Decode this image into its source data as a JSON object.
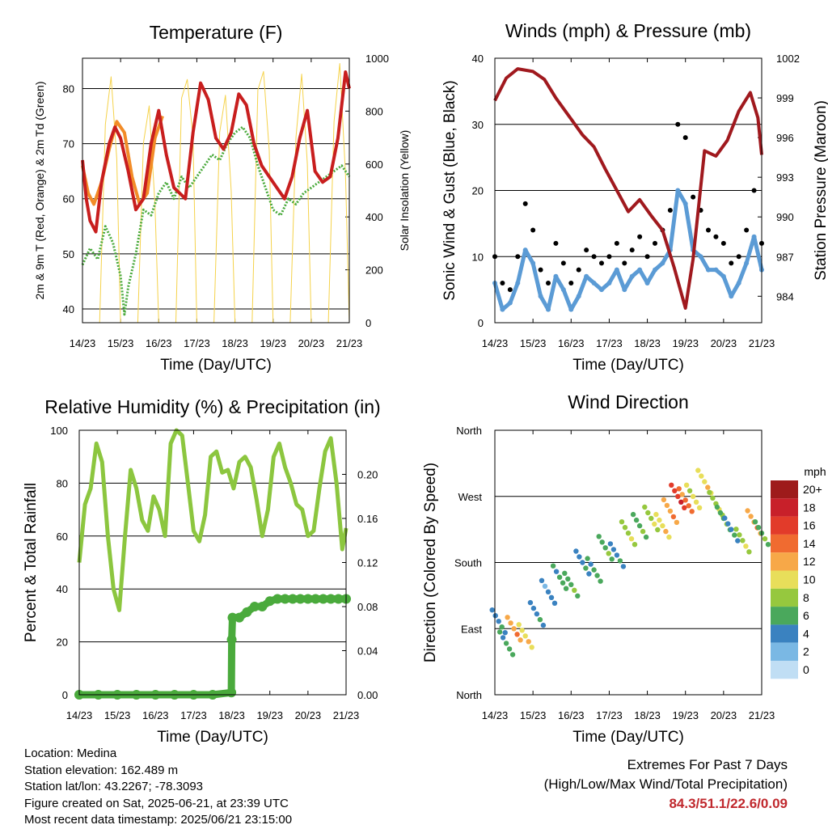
{
  "chart_data": [
    {
      "type": "line",
      "title": "Temperature (F)",
      "xlabel": "Time (Day/UTC)",
      "ylabel": "2m & 9m T (Red, Orange) & 2m Td (Green)",
      "ylabel_right": "Solar Insolation (Yellow)",
      "x_ticks": [
        "14/23",
        "15/23",
        "16/23",
        "17/23",
        "18/23",
        "19/23",
        "20/23",
        "21/23"
      ],
      "ylim": [
        37.5,
        85.5
      ],
      "y_ticks": [
        40,
        50,
        60,
        70,
        80
      ],
      "ylim_right": [
        0,
        1000
      ],
      "y_ticks_right": [
        0,
        200,
        400,
        600,
        800,
        1000
      ],
      "grid": "horizontal",
      "series": [
        {
          "role": "2m T",
          "color": "#c81e1e",
          "x": [
            0,
            0.1,
            0.2,
            0.35,
            0.5,
            0.7,
            0.85,
            1.0,
            1.2,
            1.4,
            1.6,
            1.8,
            2.0,
            2.2,
            2.4,
            2.7,
            2.9,
            3.1,
            3.3,
            3.5,
            3.7,
            3.9,
            4.1,
            4.3,
            4.5,
            4.7,
            4.9,
            5.1,
            5.3,
            5.5,
            5.7,
            5.9,
            6.1,
            6.3,
            6.5,
            6.7,
            6.9,
            7.0
          ],
          "values": [
            67,
            60,
            56,
            54,
            63,
            70,
            73,
            71,
            65,
            58,
            60,
            70,
            76,
            68,
            62,
            60,
            72,
            81,
            78,
            71,
            69,
            72,
            79,
            77,
            70,
            66,
            64,
            62,
            60,
            64,
            71,
            76,
            65,
            63,
            64,
            71,
            83,
            80
          ]
        },
        {
          "role": "9m T",
          "color": "#f28c28",
          "x": [
            0,
            0.15,
            0.3,
            0.5,
            0.7,
            0.9,
            1.1,
            1.3,
            1.5,
            1.7,
            1.9,
            2.1
          ],
          "values": [
            66,
            61,
            59,
            63,
            69,
            74,
            72,
            64,
            59,
            61,
            71,
            75
          ]
        },
        {
          "role": "2m Td",
          "color": "#4aaa3c",
          "x": [
            0,
            0.2,
            0.4,
            0.6,
            0.8,
            1.0,
            1.1,
            1.2,
            1.4,
            1.6,
            1.8,
            2.0,
            2.2,
            2.4,
            2.6,
            2.8,
            3.0,
            3.2,
            3.4,
            3.6,
            3.8,
            4.0,
            4.2,
            4.4,
            4.6,
            4.8,
            5.0,
            5.2,
            5.4,
            5.6,
            5.8,
            6.0,
            6.2,
            6.4,
            6.6,
            6.8,
            7.0
          ],
          "values": [
            48,
            51,
            49,
            55,
            52,
            46,
            39,
            44,
            50,
            58,
            57,
            61,
            63,
            60,
            64,
            62,
            64,
            66,
            68,
            67,
            70,
            72,
            73,
            71,
            66,
            62,
            58,
            57,
            60,
            59,
            61,
            62,
            63,
            64,
            65,
            66,
            64
          ]
        },
        {
          "role": "Solar Insolation",
          "color": "#f5d24a",
          "axis": "right",
          "x": [
            0,
            0.45,
            0.6,
            0.75,
            0.9,
            1.0,
            1.45,
            1.6,
            1.75,
            1.9,
            2.0,
            2.45,
            2.6,
            2.75,
            2.9,
            3.0,
            3.45,
            3.6,
            3.75,
            3.9,
            4.0,
            4.45,
            4.6,
            4.75,
            4.9,
            5.0,
            5.45,
            5.6,
            5.75,
            5.9,
            6.0,
            6.45,
            6.6,
            6.75,
            6.9,
            7.0
          ],
          "values": [
            0,
            0,
            750,
            930,
            620,
            0,
            0,
            680,
            820,
            450,
            0,
            0,
            850,
            920,
            700,
            0,
            0,
            720,
            860,
            500,
            0,
            0,
            880,
            950,
            650,
            0,
            0,
            700,
            940,
            600,
            0,
            0,
            760,
            980,
            560,
            0
          ]
        }
      ]
    },
    {
      "type": "scatter",
      "title": "Winds (mph) & Pressure (mb)",
      "xlabel": "Time (Day/UTC)",
      "ylabel": "Sonic Wind & Gust (Blue, Black)",
      "ylabel_right": "Station Pressure (Maroon)",
      "x_ticks": [
        "14/23",
        "15/23",
        "16/23",
        "17/23",
        "18/23",
        "19/23",
        "20/23",
        "21/23"
      ],
      "ylim": [
        0,
        40
      ],
      "y_ticks": [
        0,
        10,
        20,
        30,
        40
      ],
      "ylim_right": [
        982,
        1002
      ],
      "y_ticks_right": [
        984,
        987,
        990,
        993,
        996,
        999,
        1002
      ],
      "grid": "horizontal",
      "series": [
        {
          "role": "Gust",
          "color": "#000000",
          "x": [
            0,
            0.2,
            0.4,
            0.6,
            0.8,
            1.0,
            1.2,
            1.4,
            1.6,
            1.8,
            2.0,
            2.2,
            2.4,
            2.6,
            2.8,
            3.0,
            3.2,
            3.4,
            3.6,
            3.8,
            4.0,
            4.2,
            4.4,
            4.6,
            4.8,
            5.0,
            5.2,
            5.4,
            5.6,
            5.8,
            6.0,
            6.2,
            6.4,
            6.6,
            6.8,
            7.0
          ],
          "values": [
            10,
            6,
            5,
            10,
            18,
            14,
            8,
            6,
            12,
            9,
            6,
            8,
            11,
            10,
            9,
            10,
            12,
            9,
            11,
            13,
            10,
            12,
            14,
            17,
            30,
            28,
            19,
            17,
            14,
            13,
            12,
            9,
            10,
            14,
            20,
            12
          ]
        },
        {
          "role": "Wind",
          "color": "#5b9bd5",
          "x": [
            0,
            0.2,
            0.4,
            0.6,
            0.8,
            1.0,
            1.2,
            1.4,
            1.6,
            1.8,
            2.0,
            2.2,
            2.4,
            2.6,
            2.8,
            3.0,
            3.2,
            3.4,
            3.6,
            3.8,
            4.0,
            4.2,
            4.4,
            4.6,
            4.8,
            5.0,
            5.2,
            5.4,
            5.6,
            5.8,
            6.0,
            6.2,
            6.4,
            6.6,
            6.8,
            7.0
          ],
          "values": [
            6,
            2,
            3,
            6,
            11,
            9,
            4,
            2,
            7,
            5,
            2,
            4,
            7,
            6,
            5,
            6,
            8,
            5,
            7,
            8,
            6,
            8,
            9,
            11,
            20,
            18,
            11,
            10,
            8,
            8,
            7,
            4,
            6,
            9,
            13,
            8
          ]
        },
        {
          "role": "Station Pressure",
          "color": "#a0191e",
          "axis": "right",
          "x": [
            0,
            0.3,
            0.6,
            1.0,
            1.3,
            1.6,
            2.0,
            2.3,
            2.6,
            2.9,
            3.2,
            3.5,
            3.8,
            4.1,
            4.4,
            4.7,
            5.0,
            5.2,
            5.5,
            5.8,
            6.1,
            6.4,
            6.7,
            6.9,
            7.0
          ],
          "values": [
            998.8,
            1000.5,
            1001.2,
            1001.0,
            1000.4,
            999.0,
            997.4,
            996.2,
            995.3,
            993.6,
            992.0,
            990.4,
            991.3,
            990.1,
            989.0,
            986.2,
            983.1,
            986.8,
            995.0,
            994.6,
            995.8,
            998.0,
            999.4,
            997.5,
            994.7
          ]
        }
      ]
    },
    {
      "type": "line",
      "title": "Relative Humidity (%) & Precipitation (in)",
      "xlabel": "Time (Day/UTC)",
      "ylabel": "Percent & Total Rainfall",
      "x_ticks": [
        "14/23",
        "15/23",
        "16/23",
        "17/23",
        "18/23",
        "19/23",
        "20/23",
        "21/23"
      ],
      "ylim": [
        0,
        100
      ],
      "y_ticks": [
        0,
        20,
        40,
        60,
        80,
        100
      ],
      "ylim_right": [
        0,
        0.24
      ],
      "y_ticks_right": [
        "0.00",
        "0.04",
        "0.08",
        "0.12",
        "0.16",
        "0.20"
      ],
      "grid": "horizontal",
      "series": [
        {
          "role": "Relative Humidity",
          "color": "#8cc63f",
          "x": [
            0,
            0.15,
            0.3,
            0.45,
            0.6,
            0.75,
            0.9,
            1.05,
            1.2,
            1.35,
            1.5,
            1.65,
            1.8,
            1.95,
            2.1,
            2.25,
            2.4,
            2.55,
            2.7,
            2.85,
            3.0,
            3.15,
            3.3,
            3.45,
            3.6,
            3.75,
            3.9,
            4.05,
            4.2,
            4.35,
            4.5,
            4.65,
            4.8,
            4.95,
            5.1,
            5.25,
            5.4,
            5.55,
            5.7,
            5.85,
            6.0,
            6.15,
            6.3,
            6.45,
            6.6,
            6.75,
            6.9,
            7.0
          ],
          "values": [
            50,
            72,
            78,
            95,
            88,
            60,
            40,
            32,
            60,
            85,
            78,
            66,
            62,
            75,
            70,
            60,
            95,
            100,
            98,
            80,
            62,
            58,
            68,
            90,
            92,
            84,
            85,
            78,
            88,
            90,
            86,
            74,
            60,
            70,
            90,
            95,
            86,
            80,
            72,
            70,
            60,
            62,
            78,
            92,
            97,
            80,
            55,
            63
          ]
        },
        {
          "role": "Total Precipitation",
          "color": "#4aaa3c",
          "axis": "right",
          "x": [
            0,
            0.5,
            1.0,
            1.5,
            2.0,
            2.5,
            3.0,
            3.5,
            3.99,
            4.0,
            4.02,
            4.2,
            4.4,
            4.6,
            4.8,
            5.0,
            5.2,
            5.4,
            5.6,
            5.8,
            6.0,
            6.2,
            6.4,
            6.6,
            6.8,
            7.0
          ],
          "values": [
            0,
            0,
            0,
            0,
            0,
            0,
            0,
            0,
            0.002,
            0.05,
            0.07,
            0.07,
            0.075,
            0.08,
            0.08,
            0.085,
            0.087,
            0.087,
            0.087,
            0.087,
            0.087,
            0.087,
            0.087,
            0.087,
            0.087,
            0.087
          ]
        }
      ]
    },
    {
      "type": "scatter",
      "title": "Wind Direction",
      "xlabel": "Time (Day/UTC)",
      "ylabel": "Direction (Colored By Speed)",
      "x_ticks": [
        "14/23",
        "15/23",
        "16/23",
        "17/23",
        "18/23",
        "19/23",
        "20/23",
        "21/23"
      ],
      "y_ticks": [
        "North",
        "East",
        "South",
        "West",
        "North"
      ],
      "ylim": [
        0,
        360
      ],
      "grid": "horizontal",
      "colorbar": {
        "title": "mph",
        "labels": [
          "20+",
          "18",
          "16",
          "14",
          "12",
          "10",
          "8",
          "6",
          "4",
          "2",
          "0"
        ],
        "colors": [
          "#9e1b1b",
          "#c8202a",
          "#e23b2a",
          "#f06b30",
          "#f7a848",
          "#e8de5a",
          "#96c83e",
          "#4aa85c",
          "#3a82c0",
          "#7ab8e4",
          "#c0def4"
        ]
      },
      "series": [
        {
          "role": "Direction",
          "x": [
            0.1,
            0.3,
            0.5,
            0.8,
            1.1,
            1.4,
            1.7,
            2.0,
            2.3,
            2.6,
            2.9,
            3.2,
            3.5,
            3.8,
            4.1,
            4.4,
            4.6,
            4.8,
            5.0,
            5.2,
            5.5,
            5.8,
            6.0,
            6.2,
            6.5,
            6.8,
            7.0
          ],
          "values": [
            100,
            70,
            90,
            80,
            110,
            140,
            160,
            150,
            180,
            170,
            200,
            190,
            220,
            230,
            240,
            230,
            250,
            270,
            265,
            270,
            290,
            260,
            240,
            225,
            210,
            235,
            220
          ],
          "speeds": [
            4,
            5,
            12,
            10,
            4,
            3,
            5,
            6,
            4,
            5,
            6,
            4,
            8,
            6,
            8,
            10,
            12,
            16,
            13,
            9,
            10,
            8,
            6,
            4,
            8,
            12,
            6
          ]
        }
      ]
    }
  ],
  "footer": {
    "location": "Location: Medina",
    "elevation": "Station elevation: 162.489 m",
    "latlon": "Station lat/lon: 43.2267; -78.3093",
    "created": "Figure created on Sat, 2025-06-21, at 23:39 UTC",
    "recent": "Most recent data timestamp: 2025/06/21 23:15:00",
    "extremes_title": "Extremes For Past 7 Days",
    "extremes_sub": "(High/Low/Max Wind/Total Precipitation)",
    "extremes_values": "84.3/51.1/22.6/0.09"
  }
}
